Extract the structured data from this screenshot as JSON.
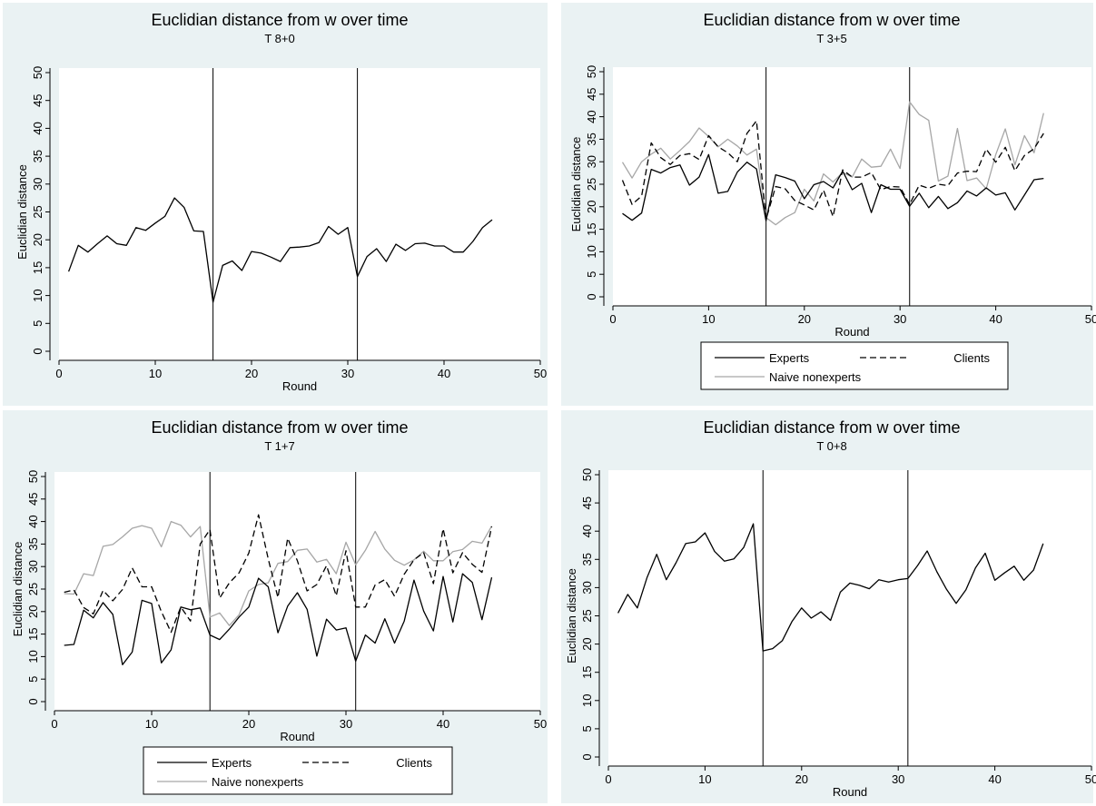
{
  "figure": {
    "background": "#eaf2f3",
    "plot_background": "#ffffff",
    "axis_color": "#000000"
  },
  "chart_data": [
    {
      "type": "line",
      "title": "Euclidian distance from w over time",
      "subtitle": "T 8+0",
      "xlabel": "Round",
      "ylabel": "Euclidian distance",
      "xlim": [
        0,
        50
      ],
      "ylim": [
        0,
        50
      ],
      "xticks": [
        0,
        10,
        20,
        30,
        40,
        50
      ],
      "yticks": [
        0,
        5,
        10,
        15,
        20,
        25,
        30,
        35,
        40,
        45,
        50
      ],
      "vlines": [
        16,
        31
      ],
      "legend": null,
      "series": [
        {
          "color": "#000000",
          "dash": "",
          "x": [
            1,
            2,
            3,
            4,
            5,
            6,
            7,
            8,
            9,
            10,
            11,
            12,
            13,
            14,
            15,
            16,
            17,
            18,
            19,
            20,
            21,
            22,
            23,
            24,
            25,
            26,
            27,
            28,
            29,
            30,
            31,
            32,
            33,
            34,
            35,
            36,
            37,
            38,
            39,
            40,
            41,
            42,
            43,
            44,
            45
          ],
          "y": [
            14.3,
            19.0,
            17.8,
            19.3,
            20.7,
            19.3,
            19.0,
            22.2,
            21.7,
            23.0,
            24.2,
            27.5,
            25.8,
            21.6,
            21.5,
            8.8,
            15.4,
            16.2,
            14.5,
            17.9,
            17.6,
            16.9,
            16.1,
            18.6,
            18.7,
            18.9,
            19.5,
            22.4,
            21.0,
            22.2,
            13.4,
            17.0,
            18.4,
            16.1,
            19.2,
            18.1,
            19.3,
            19.4,
            18.9,
            18.9,
            17.8,
            17.8,
            19.7,
            22.2,
            23.6
          ]
        }
      ]
    },
    {
      "type": "line",
      "title": "Euclidian distance from w over time",
      "subtitle": "T 3+5",
      "xlabel": "Round",
      "ylabel": "Euclidian distance",
      "xlim": [
        0,
        50
      ],
      "ylim": [
        0,
        50
      ],
      "xticks": [
        0,
        10,
        20,
        30,
        40,
        50
      ],
      "yticks": [
        0,
        5,
        10,
        15,
        20,
        25,
        30,
        35,
        40,
        45,
        50
      ],
      "vlines": [
        16,
        31
      ],
      "legend": {
        "placement": "bottom",
        "entries": [
          "Experts",
          "Clients",
          "Naive nonexperts"
        ]
      },
      "series": [
        {
          "name": "Experts",
          "color": "#000000",
          "dash": "",
          "x": [
            1,
            2,
            3,
            4,
            5,
            6,
            7,
            8,
            9,
            10,
            11,
            12,
            13,
            14,
            15,
            16,
            17,
            18,
            19,
            20,
            21,
            22,
            23,
            24,
            25,
            26,
            27,
            28,
            29,
            30,
            31,
            32,
            33,
            34,
            35,
            36,
            37,
            38,
            39,
            40,
            41,
            42,
            43,
            44,
            45
          ],
          "y": [
            18.5,
            17.0,
            18.6,
            28.3,
            27.5,
            28.7,
            29.3,
            24.8,
            26.6,
            31.6,
            23.0,
            23.4,
            27.7,
            29.9,
            28.4,
            16.9,
            27.1,
            26.5,
            25.7,
            21.8,
            24.9,
            25.6,
            24.2,
            27.9,
            23.8,
            25.2,
            18.7,
            24.9,
            23.9,
            23.9,
            20.1,
            23.0,
            19.8,
            22.3,
            19.6,
            20.9,
            23.5,
            22.4,
            24.2,
            22.6,
            23.1,
            19.3,
            22.6,
            26.0,
            26.3
          ]
        },
        {
          "name": "Clients",
          "color": "#000000",
          "dash": "7,4",
          "x": [
            1,
            2,
            3,
            4,
            5,
            6,
            7,
            8,
            9,
            10,
            11,
            12,
            13,
            14,
            15,
            16,
            17,
            18,
            19,
            20,
            21,
            22,
            23,
            24,
            25,
            26,
            27,
            28,
            29,
            30,
            31,
            32,
            33,
            34,
            35,
            36,
            37,
            38,
            39,
            40,
            41,
            42,
            43,
            44,
            45
          ],
          "y": [
            25.9,
            20.5,
            22.4,
            34.2,
            30.9,
            29.4,
            31.4,
            31.8,
            30.5,
            35.8,
            33.3,
            32.0,
            30.0,
            36.3,
            39.1,
            17.2,
            24.5,
            24.0,
            21.4,
            20.4,
            19.3,
            23.7,
            17.8,
            28.2,
            26.6,
            26.6,
            27.6,
            23.8,
            24.5,
            24.4,
            20.5,
            24.8,
            24.1,
            25.0,
            24.7,
            27.5,
            27.9,
            27.8,
            32.8,
            29.9,
            33.2,
            28.0,
            31.4,
            32.9,
            36.3
          ]
        },
        {
          "name": "Naive nonexperts",
          "color": "#a6a6a6",
          "dash": "",
          "x": [
            1,
            2,
            3,
            4,
            5,
            6,
            7,
            8,
            9,
            10,
            11,
            12,
            13,
            14,
            15,
            16,
            17,
            18,
            19,
            20,
            21,
            22,
            23,
            24,
            25,
            26,
            27,
            28,
            29,
            30,
            31,
            32,
            33,
            34,
            35,
            36,
            37,
            38,
            39,
            40,
            41,
            42,
            43,
            44,
            45
          ],
          "y": [
            29.9,
            26.4,
            30.0,
            31.7,
            33.0,
            30.6,
            32.5,
            34.5,
            37.5,
            35.6,
            33.3,
            35.0,
            33.5,
            31.5,
            32.8,
            17.6,
            16.0,
            17.6,
            18.7,
            23.9,
            21.3,
            27.3,
            25.5,
            27.6,
            26.6,
            30.6,
            28.8,
            29.0,
            32.8,
            28.5,
            43.3,
            40.5,
            39.2,
            25.7,
            26.8,
            37.4,
            25.8,
            26.4,
            24.0,
            31.6,
            37.3,
            29.3,
            35.8,
            32.0,
            40.8
          ]
        }
      ]
    },
    {
      "type": "line",
      "title": "Euclidian distance from w over time",
      "subtitle": "T 1+7",
      "xlabel": "Round",
      "ylabel": "Euclidian distance",
      "xlim": [
        0,
        50
      ],
      "ylim": [
        0,
        50
      ],
      "xticks": [
        0,
        10,
        20,
        30,
        40,
        50
      ],
      "yticks": [
        0,
        5,
        10,
        15,
        20,
        25,
        30,
        35,
        40,
        45,
        50
      ],
      "vlines": [
        16,
        31
      ],
      "legend": {
        "placement": "bottom",
        "entries": [
          "Experts",
          "Clients",
          "Naive nonexperts"
        ]
      },
      "series": [
        {
          "name": "Experts",
          "color": "#000000",
          "dash": "",
          "x": [
            1,
            2,
            3,
            4,
            5,
            6,
            7,
            8,
            9,
            10,
            11,
            12,
            13,
            14,
            15,
            16,
            17,
            18,
            19,
            20,
            21,
            22,
            23,
            24,
            25,
            26,
            27,
            28,
            29,
            30,
            31,
            32,
            33,
            34,
            35,
            36,
            37,
            38,
            39,
            40,
            41,
            42,
            43,
            44,
            45
          ],
          "y": [
            12.5,
            12.7,
            20.3,
            18.6,
            22.0,
            19.4,
            8.2,
            11.0,
            22.5,
            21.8,
            8.6,
            11.5,
            21.0,
            20.4,
            20.8,
            14.8,
            13.8,
            16.1,
            18.8,
            21.0,
            27.4,
            25.5,
            15.3,
            21.2,
            24.2,
            20.5,
            10.1,
            18.3,
            15.9,
            16.4,
            9.0,
            14.8,
            13.0,
            18.4,
            13.0,
            17.9,
            27.0,
            20.1,
            15.7,
            27.8,
            17.7,
            28.4,
            26.5,
            18.2,
            27.6
          ]
        },
        {
          "name": "Clients",
          "color": "#000000",
          "dash": "7,4",
          "x": [
            1,
            2,
            3,
            4,
            5,
            6,
            7,
            8,
            9,
            10,
            11,
            12,
            13,
            14,
            15,
            16,
            17,
            18,
            19,
            20,
            21,
            22,
            23,
            24,
            25,
            26,
            27,
            28,
            29,
            30,
            31,
            32,
            33,
            34,
            35,
            36,
            37,
            38,
            39,
            40,
            41,
            42,
            43,
            44,
            45
          ],
          "y": [
            24.3,
            24.8,
            20.9,
            19.5,
            24.7,
            22.4,
            24.9,
            29.7,
            25.5,
            25.5,
            20.0,
            15.4,
            21.0,
            17.9,
            35.0,
            38.2,
            23.0,
            26.4,
            28.6,
            33.0,
            41.5,
            31.7,
            23.1,
            36.3,
            31.3,
            24.6,
            26.0,
            30.2,
            23.5,
            33.5,
            21.0,
            21.0,
            25.9,
            27.1,
            23.4,
            28.3,
            31.5,
            33.1,
            26.2,
            38.4,
            28.6,
            33.1,
            30.5,
            28.7,
            38.9
          ]
        },
        {
          "name": "Naive nonexperts",
          "color": "#a6a6a6",
          "dash": "",
          "x": [
            1,
            2,
            3,
            4,
            5,
            6,
            7,
            8,
            9,
            10,
            11,
            12,
            13,
            14,
            15,
            16,
            17,
            18,
            19,
            20,
            21,
            22,
            23,
            24,
            25,
            26,
            27,
            28,
            29,
            30,
            31,
            32,
            33,
            34,
            35,
            36,
            37,
            38,
            39,
            40,
            41,
            42,
            43,
            44,
            45
          ],
          "y": [
            24.0,
            23.9,
            28.4,
            28.0,
            34.5,
            34.9,
            36.6,
            38.5,
            39.1,
            38.5,
            34.4,
            40.0,
            39.2,
            36.6,
            38.9,
            18.8,
            19.7,
            16.9,
            19.3,
            24.6,
            26.0,
            26.4,
            30.7,
            31.1,
            33.6,
            33.9,
            31.0,
            31.6,
            28.4,
            35.4,
            30.4,
            33.6,
            37.8,
            33.9,
            31.4,
            30.3,
            31.5,
            33.4,
            31.3,
            31.3,
            33.3,
            33.8,
            35.6,
            35.2,
            39.0
          ]
        }
      ]
    },
    {
      "type": "line",
      "title": "Euclidian distance from w over time",
      "subtitle": "T 0+8",
      "xlabel": "Round",
      "ylabel": "Euclidian distance",
      "xlim": [
        0,
        50
      ],
      "ylim": [
        0,
        50
      ],
      "xticks": [
        0,
        10,
        20,
        30,
        40,
        50
      ],
      "yticks": [
        0,
        5,
        10,
        15,
        20,
        25,
        30,
        35,
        40,
        45,
        50
      ],
      "vlines": [
        16,
        31
      ],
      "legend": null,
      "series": [
        {
          "color": "#000000",
          "dash": "",
          "x": [
            1,
            2,
            3,
            4,
            5,
            6,
            7,
            8,
            9,
            10,
            11,
            12,
            13,
            14,
            15,
            16,
            17,
            18,
            19,
            20,
            21,
            22,
            23,
            24,
            25,
            26,
            27,
            28,
            29,
            30,
            31,
            32,
            33,
            34,
            35,
            36,
            37,
            38,
            39,
            40,
            41,
            42,
            43,
            44,
            45
          ],
          "y": [
            25.5,
            28.8,
            26.4,
            31.8,
            35.9,
            31.4,
            34.4,
            37.8,
            38.1,
            39.7,
            36.4,
            34.7,
            35.1,
            37.1,
            41.3,
            18.8,
            19.2,
            20.6,
            24.0,
            26.4,
            24.6,
            25.7,
            24.2,
            29.2,
            30.8,
            30.4,
            29.8,
            31.4,
            31.0,
            31.4,
            31.6,
            33.9,
            36.5,
            32.8,
            29.7,
            27.2,
            29.6,
            33.5,
            36.1,
            31.3,
            32.6,
            33.8,
            31.3,
            33.1,
            37.8
          ]
        }
      ]
    }
  ]
}
